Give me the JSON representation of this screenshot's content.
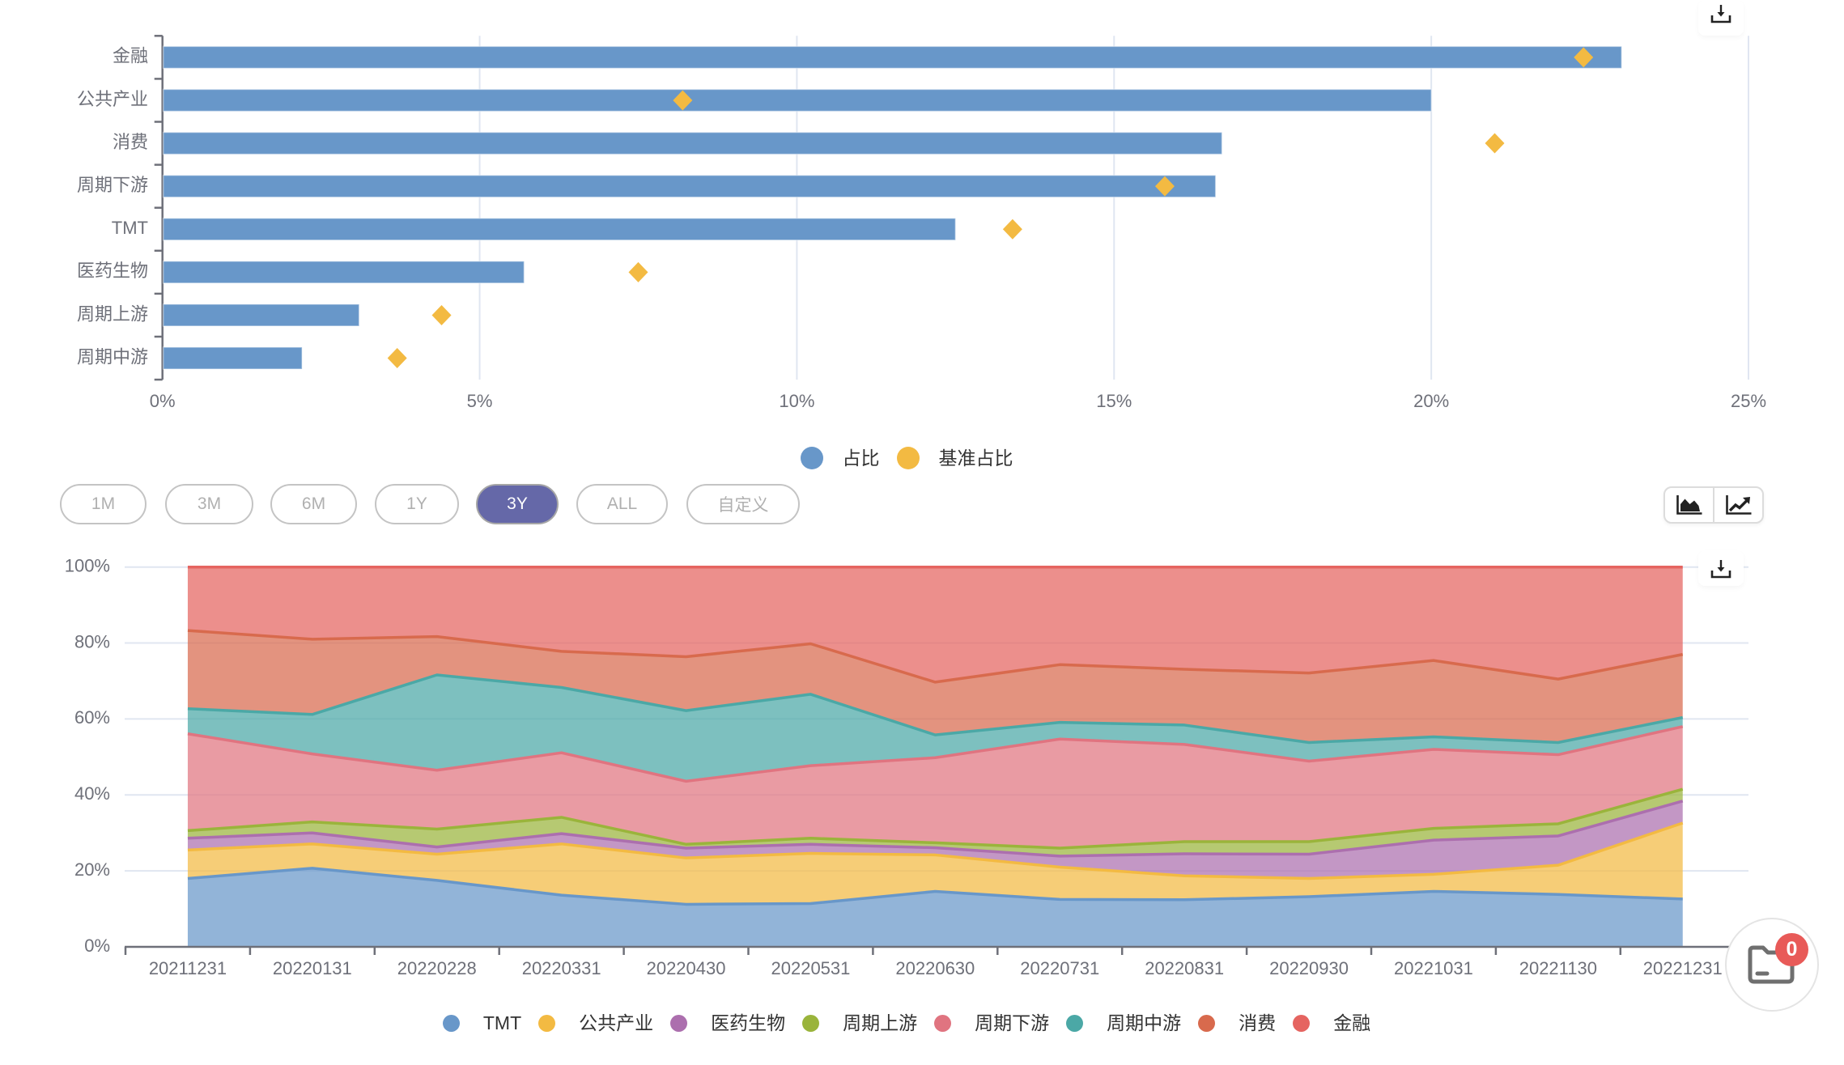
{
  "toolbox": {
    "download_icon": "download-icon"
  },
  "chart_data": [
    {
      "type": "bar",
      "orientation": "horizontal",
      "title": "",
      "xlabel": "",
      "ylabel": "",
      "categories": [
        "金融",
        "公共产业",
        "消费",
        "周期下游",
        "TMT",
        "医药生物",
        "周期上游",
        "周期中游"
      ],
      "series": [
        {
          "name": "占比",
          "mark": "bar",
          "color": "#6897c9",
          "values": [
            23.0,
            20.0,
            16.7,
            16.6,
            12.5,
            5.7,
            3.1,
            2.2
          ]
        },
        {
          "name": "基准占比",
          "mark": "diamond",
          "color": "#f3ba42",
          "values": [
            22.4,
            8.2,
            21.0,
            15.8,
            13.4,
            7.5,
            4.4,
            3.7
          ]
        }
      ],
      "unit": "%",
      "xlim": [
        0,
        25
      ],
      "xticks": [
        0,
        5,
        10,
        15,
        20,
        25
      ],
      "xtick_labels": [
        "0%",
        "5%",
        "10%",
        "15%",
        "20%",
        "25%"
      ],
      "grid": true,
      "legend": "bottom-center"
    },
    {
      "type": "area",
      "stacked": true,
      "title": "",
      "xlabel": "",
      "ylabel": "",
      "x": [
        "20211231",
        "20220131",
        "20220228",
        "20220331",
        "20220430",
        "20220531",
        "20220630",
        "20220731",
        "20220831",
        "20220930",
        "20221031",
        "20221130",
        "20221231"
      ],
      "series": [
        {
          "name": "TMT",
          "color": "#6897c9",
          "values": [
            18.0,
            20.7,
            17.5,
            13.6,
            11.2,
            11.4,
            14.6,
            12.5,
            12.4,
            13.2,
            14.6,
            13.8,
            12.6
          ]
        },
        {
          "name": "公共产业",
          "color": "#f3ba42",
          "values": [
            7.5,
            6.4,
            6.9,
            13.5,
            12.2,
            13.2,
            9.6,
            8.5,
            6.3,
            4.8,
            4.5,
            7.7,
            20.0
          ]
        },
        {
          "name": "医药生物",
          "color": "#ac6fae",
          "values": [
            3.1,
            2.9,
            1.9,
            2.7,
            2.6,
            2.4,
            1.9,
            2.9,
            5.8,
            6.4,
            9.0,
            7.7,
            5.8
          ]
        },
        {
          "name": "周期上游",
          "color": "#9ab43b",
          "values": [
            2.0,
            2.9,
            4.7,
            4.3,
            1.0,
            1.6,
            1.3,
            2.1,
            3.2,
            3.3,
            3.1,
            3.2,
            3.1
          ]
        },
        {
          "name": "周期下游",
          "color": "#e07480",
          "values": [
            25.5,
            17.9,
            15.5,
            17.0,
            16.6,
            19.1,
            22.4,
            28.7,
            25.6,
            21.2,
            20.8,
            18.2,
            16.5
          ]
        },
        {
          "name": "周期中游",
          "color": "#4ba8a6",
          "values": [
            6.6,
            10.4,
            25.1,
            17.2,
            18.6,
            18.8,
            6.0,
            4.4,
            5.1,
            4.9,
            3.3,
            3.2,
            2.4
          ]
        },
        {
          "name": "消费",
          "color": "#d86a4d",
          "values": [
            20.6,
            19.8,
            10.1,
            9.5,
            14.2,
            13.3,
            13.9,
            15.2,
            14.7,
            18.3,
            20.1,
            16.7,
            16.6
          ]
        },
        {
          "name": "金融",
          "color": "#e56460",
          "values": [
            16.7,
            19.0,
            18.3,
            22.2,
            23.6,
            20.2,
            30.3,
            25.7,
            26.9,
            27.9,
            24.6,
            29.5,
            23.0
          ]
        }
      ],
      "unit": "%",
      "ylim": [
        0,
        100
      ],
      "yticks": [
        0,
        20,
        40,
        60,
        80,
        100
      ],
      "ytick_labels": [
        "0%",
        "20%",
        "40%",
        "60%",
        "80%",
        "100%"
      ],
      "grid": true,
      "legend": "bottom-center"
    }
  ],
  "range_selector": {
    "buttons": [
      {
        "label": "1M",
        "active": false
      },
      {
        "label": "3M",
        "active": false
      },
      {
        "label": "6M",
        "active": false
      },
      {
        "label": "1Y",
        "active": false
      },
      {
        "label": "3Y",
        "active": true
      },
      {
        "label": "ALL",
        "active": false
      },
      {
        "label": "自定义",
        "active": false
      }
    ]
  },
  "chart_type_toggle": {
    "options": [
      {
        "icon": "area-chart-icon"
      },
      {
        "icon": "line-chart-icon"
      }
    ]
  },
  "floating_button": {
    "icon": "folder-icon",
    "badge_count": "0"
  }
}
